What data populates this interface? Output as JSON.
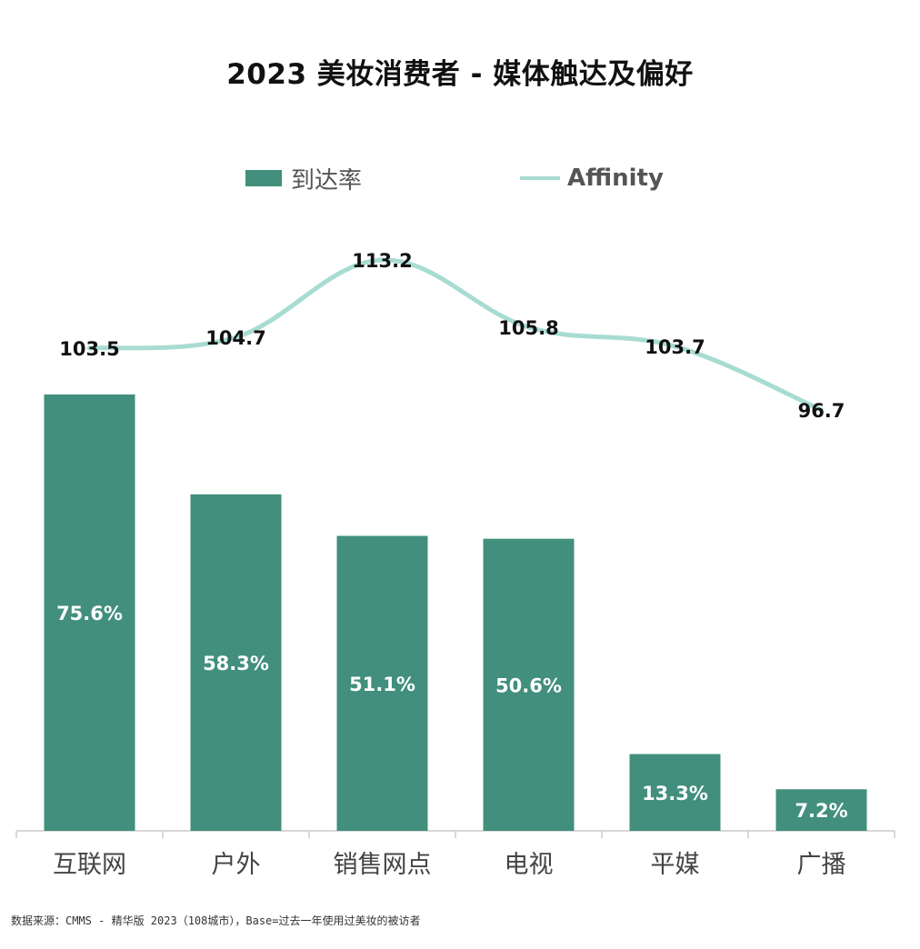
{
  "title": "2023 美妆消费者 - 媒体触达及偏好",
  "legend": {
    "bar_label": "到达率",
    "line_label": "Affinity"
  },
  "colors": {
    "bar": "#418f7c",
    "line": "#a8dcd2",
    "bar_label_text": "#ffffff",
    "line_label_text": "#111111",
    "axis": "#cccccc",
    "category_text": "#444444"
  },
  "chart_data": {
    "type": "bar",
    "categories": [
      "互联网",
      "户外",
      "销售网点",
      "电视",
      "平媒",
      "广播"
    ],
    "series": [
      {
        "name": "到达率",
        "kind": "bar",
        "values": [
          75.6,
          58.3,
          51.1,
          50.6,
          13.3,
          7.2
        ],
        "value_labels": [
          "75.6%",
          "58.3%",
          "51.1%",
          "50.6%",
          "13.3%",
          "7.2%"
        ]
      },
      {
        "name": "Affinity",
        "kind": "line",
        "values": [
          103.5,
          104.7,
          113.2,
          105.8,
          103.7,
          96.7
        ],
        "value_labels": [
          "103.5",
          "104.7",
          "113.2",
          "105.8",
          "103.7",
          "96.7"
        ]
      }
    ],
    "title": "2023 美妆消费者 - 媒体触达及偏好",
    "xlabel": "",
    "ylabel": "",
    "ylim": [
      0,
      80
    ],
    "line_ylim": [
      90,
      120
    ],
    "grid": false,
    "legend_position": "top-center"
  },
  "source_note": "数据来源：CMMS - 精华版 2023（108城市），Base=过去一年使用过美妆的被访者"
}
